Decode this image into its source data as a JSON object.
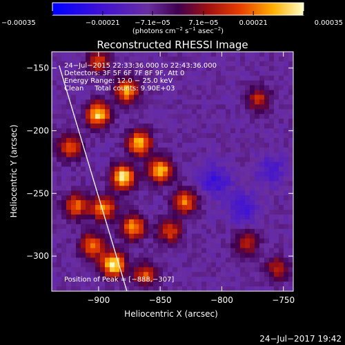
{
  "chart_data": {
    "type": "heatmap",
    "title": "Reconstructed RHESSI Image",
    "xlabel": "Heliocentric X (arcsec)",
    "ylabel": "Heliocentric Y (arcsec)",
    "xlim": [
      -938,
      -742
    ],
    "ylim": [
      -328,
      -137
    ],
    "x_ticks": [
      -900,
      -850,
      -800,
      -750
    ],
    "y_ticks": [
      -150,
      -200,
      -250,
      -300
    ],
    "x_tick_labels": [
      "−900",
      "−850",
      "−800",
      "−750"
    ],
    "y_tick_labels": [
      "−150",
      "−200",
      "−250",
      "−300"
    ],
    "colorbar": {
      "range": [
        -0.00035,
        0.00035
      ],
      "ticks": [
        -0.00035,
        -0.00021,
        -7.1e-05,
        7.1e-05,
        0.00021,
        0.00035
      ],
      "tick_labels": [
        "−0.00035",
        "−0.00021",
        "−7.1e−05",
        "7.1e−05",
        "0.00021",
        "0.00035"
      ],
      "unit_label_prefix": "(photons cm",
      "unit_label_exp1": "−2",
      "unit_label_mid1": " s",
      "unit_label_exp2": "−1",
      "unit_label_mid2": " asec",
      "unit_label_exp3": "−2",
      "unit_label_suffix": ")"
    },
    "colors": {
      "min": "#0000ff",
      "neutral": "#6a2ea0",
      "max": "#ffffc8"
    },
    "annotations": {
      "line1": "24−Jul−2015 22:33:36.000 to 22:43:36.000",
      "line2": "Detectors: 3F 5F 6F 7F 8F 9F, Att 0",
      "line3": "Energy Range: 12.0 − 25.0 keV",
      "line4": "Clean     Total counts: 9.90E+03",
      "peak": "Position of Peak = [−888,−307]"
    },
    "sources": [
      {
        "x": -900,
        "y": -187,
        "value": 0.00031
      },
      {
        "x": -877,
        "y": -168,
        "value": 0.00026
      },
      {
        "x": -867,
        "y": -210,
        "value": 0.00029
      },
      {
        "x": -880,
        "y": -237,
        "value": 0.00034
      },
      {
        "x": -850,
        "y": -232,
        "value": 0.0003
      },
      {
        "x": -830,
        "y": -257,
        "value": 0.00022
      },
      {
        "x": -896,
        "y": -262,
        "value": 0.00024
      },
      {
        "x": -872,
        "y": -277,
        "value": 0.00025
      },
      {
        "x": -905,
        "y": -292,
        "value": 0.00022
      },
      {
        "x": -888,
        "y": -307,
        "value": 0.00035
      },
      {
        "x": -923,
        "y": -213,
        "value": 0.00018
      },
      {
        "x": -918,
        "y": -260,
        "value": 0.0002
      },
      {
        "x": -842,
        "y": -280,
        "value": 0.00016
      },
      {
        "x": -862,
        "y": -315,
        "value": 0.00017
      },
      {
        "x": -900,
        "y": -145,
        "value": 0.00014
      },
      {
        "x": -770,
        "y": -175,
        "value": 0.00012
      },
      {
        "x": -780,
        "y": -290,
        "value": 0.00011
      },
      {
        "x": -755,
        "y": -310,
        "value": 0.0001
      }
    ],
    "negative_regions": [
      {
        "x": -805,
        "y": -240,
        "value": -0.00014
      },
      {
        "x": -782,
        "y": -262,
        "value": -0.00012
      },
      {
        "x": -760,
        "y": -232,
        "value": -0.0001
      }
    ],
    "limb_line": {
      "x": [
        -932,
        -877
      ],
      "y": [
        -148,
        -328
      ]
    }
  },
  "timestamp": "24−Jul−2017 19:42"
}
